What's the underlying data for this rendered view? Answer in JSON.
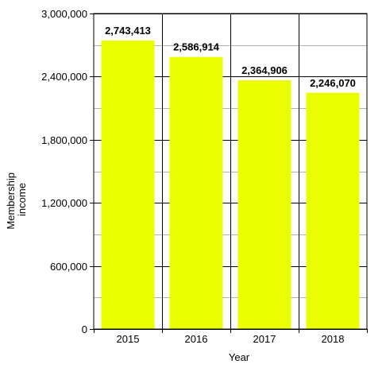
{
  "chart_data": {
    "type": "bar",
    "title": "",
    "xlabel": "Year",
    "ylabel_lines": [
      "Membership",
      "income"
    ],
    "categories": [
      "2015",
      "2016",
      "2017",
      "2018"
    ],
    "series": [
      {
        "values": [
          2743413,
          2586914,
          2364906,
          2246070
        ],
        "value_labels": [
          "2,743,413",
          "2,586,914",
          "2,364,906",
          "2,246,070"
        ],
        "color": "#eaff00"
      }
    ],
    "ylim": [
      0,
      3000000
    ],
    "y_ticks": [
      0,
      600000,
      1200000,
      1800000,
      2400000,
      3000000
    ],
    "y_tick_labels": [
      "0",
      "600,000",
      "1,200,000",
      "1,800,000",
      "2,400,000",
      "3,000,000"
    ],
    "grid": "major black, minor gray",
    "legend": "none"
  }
}
